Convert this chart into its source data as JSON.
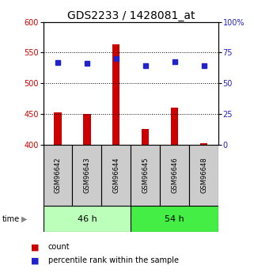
{
  "title": "GDS2233 / 1428081_at",
  "samples": [
    "GSM96642",
    "GSM96643",
    "GSM96644",
    "GSM96645",
    "GSM96646",
    "GSM96648"
  ],
  "group_labels": [
    "46 h",
    "54 h"
  ],
  "bar_values": [
    452,
    450,
    563,
    425,
    460,
    403
  ],
  "dot_values": [
    534,
    533,
    540,
    529,
    535,
    529
  ],
  "bar_base": 400,
  "ylim_left": [
    400,
    600
  ],
  "ylim_right": [
    0,
    100
  ],
  "yticks_left": [
    400,
    450,
    500,
    550,
    600
  ],
  "yticks_right": [
    0,
    25,
    50,
    75,
    100
  ],
  "bar_color": "#cc0000",
  "dot_color": "#2222cc",
  "group_color_1": "#bbffbb",
  "group_color_2": "#44ee44",
  "box_gray": "#cccccc",
  "plot_bg": "#ffffff",
  "title_fontsize": 10,
  "tick_fontsize": 7,
  "sample_fontsize": 6,
  "group_fontsize": 8
}
